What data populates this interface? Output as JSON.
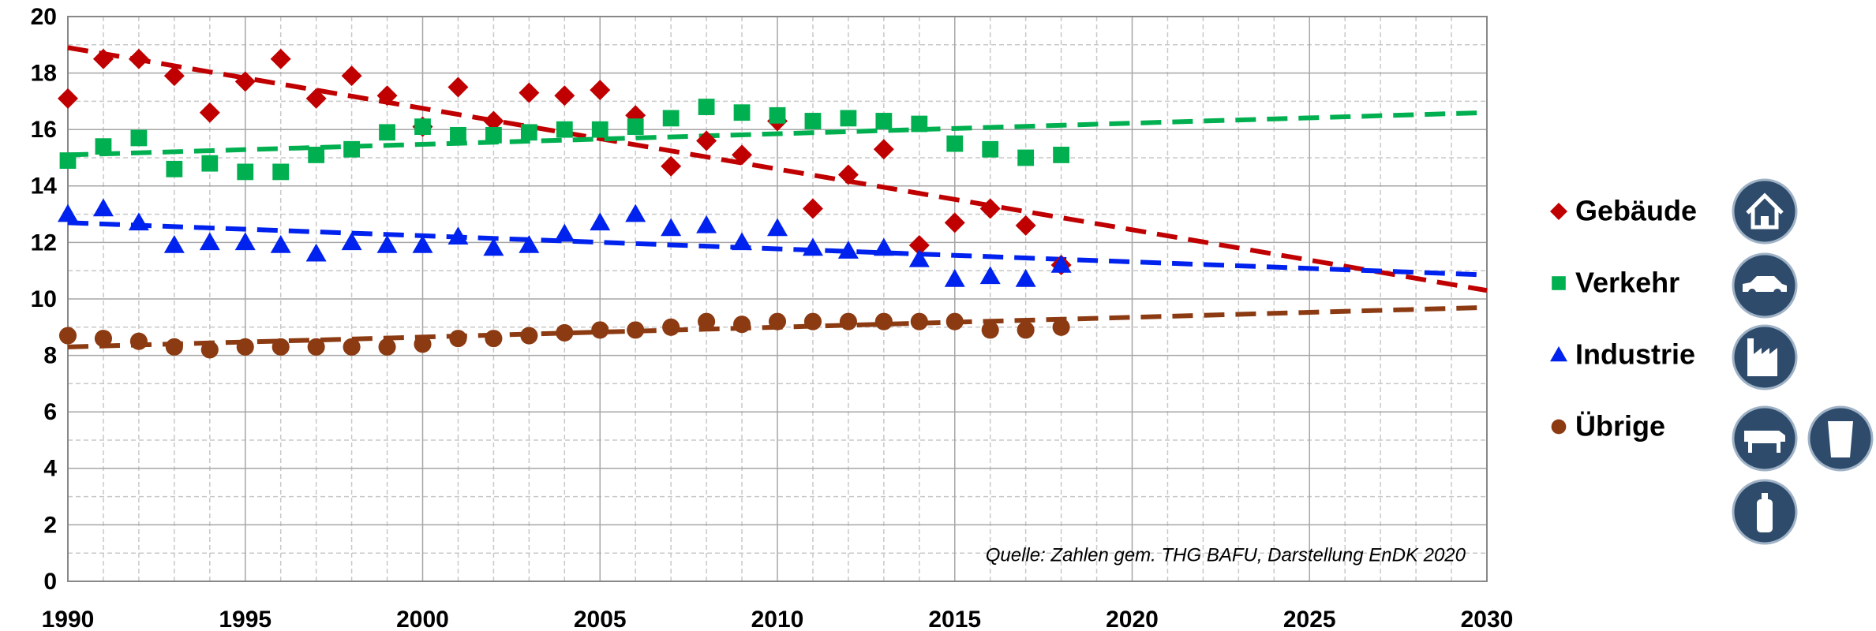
{
  "chart_data": {
    "type": "scatter",
    "annotation": "Quelle: Zahlen gem. THG BAFU, Darstellung EnDK 2020",
    "x": [
      1990,
      1991,
      1992,
      1993,
      1994,
      1995,
      1996,
      1997,
      1998,
      1999,
      2000,
      2001,
      2002,
      2003,
      2004,
      2005,
      2006,
      2007,
      2008,
      2009,
      2010,
      2011,
      2012,
      2013,
      2014,
      2015,
      2016,
      2017,
      2018
    ],
    "series": [
      {
        "name": "Gebäude",
        "color": "#c00000",
        "marker": "diamond",
        "values": [
          17.1,
          18.5,
          18.5,
          17.9,
          16.6,
          17.7,
          18.5,
          17.1,
          17.9,
          17.2,
          16.1,
          17.5,
          16.3,
          17.3,
          17.2,
          17.4,
          16.5,
          14.7,
          15.6,
          15.1,
          16.3,
          13.2,
          14.4,
          15.3,
          11.9,
          12.7,
          13.2,
          12.6,
          11.2
        ]
      },
      {
        "name": "Verkehr",
        "color": "#00b050",
        "marker": "square",
        "values": [
          14.9,
          15.4,
          15.7,
          14.6,
          14.8,
          14.5,
          14.5,
          15.1,
          15.3,
          15.9,
          16.1,
          15.8,
          15.8,
          15.9,
          16.0,
          16.0,
          16.1,
          16.4,
          16.8,
          16.6,
          16.5,
          16.3,
          16.4,
          16.3,
          16.2,
          15.5,
          15.3,
          15.0,
          15.1
        ]
      },
      {
        "name": "Industrie",
        "color": "#0022ee",
        "marker": "triangle",
        "values": [
          13.0,
          13.2,
          12.7,
          11.9,
          12.0,
          12.0,
          11.9,
          11.6,
          12.0,
          11.9,
          11.9,
          12.2,
          11.8,
          11.9,
          12.3,
          12.7,
          13.0,
          12.5,
          12.6,
          12.0,
          12.5,
          11.8,
          11.7,
          11.8,
          11.4,
          10.7,
          10.8,
          10.7,
          11.2
        ]
      },
      {
        "name": "Übrige",
        "color": "#8b3a12",
        "marker": "circle",
        "values": [
          8.7,
          8.6,
          8.5,
          8.3,
          8.2,
          8.3,
          8.3,
          8.3,
          8.3,
          8.3,
          8.4,
          8.6,
          8.6,
          8.7,
          8.8,
          8.9,
          8.9,
          9.0,
          9.2,
          9.1,
          9.2,
          9.2,
          9.2,
          9.2,
          9.2,
          9.2,
          8.9,
          8.9,
          9.0
        ]
      }
    ],
    "trendlines": [
      {
        "color": "#c00000",
        "x": [
          1990,
          2030
        ],
        "values": [
          18.9,
          10.3
        ]
      },
      {
        "color": "#00b050",
        "x": [
          1990,
          2030
        ],
        "values": [
          15.1,
          16.6
        ]
      },
      {
        "color": "#0022ee",
        "x": [
          1990,
          2030
        ],
        "values": [
          12.7,
          10.85
        ]
      },
      {
        "color": "#8b3a12",
        "x": [
          1990,
          2030
        ],
        "values": [
          8.3,
          9.7
        ]
      }
    ],
    "xlim": [
      1990,
      2030
    ],
    "xticks": [
      1990,
      1995,
      2000,
      2005,
      2010,
      2015,
      2020,
      2025,
      2030
    ],
    "ylim": [
      0,
      20
    ],
    "yticks": [
      0,
      2,
      4,
      6,
      8,
      10,
      12,
      14,
      16,
      18,
      20
    ],
    "grid": true
  }
}
